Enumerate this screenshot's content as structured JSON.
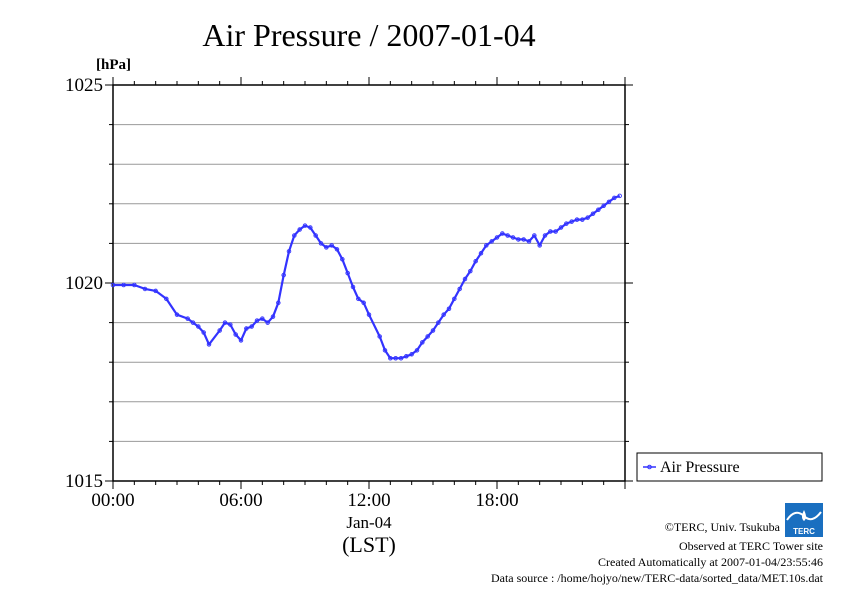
{
  "chart_data": {
    "type": "line",
    "title": "Air Pressure / 2007-01-04",
    "ylabel": "[hPa]",
    "xlabel": "(LST)",
    "date_label": "Jan-04",
    "ylim": [
      1015,
      1025
    ],
    "xlim_hours": [
      0,
      24
    ],
    "y_ticks": [
      "1015",
      "1020",
      "1025"
    ],
    "x_ticks": [
      {
        "hour": 0,
        "label": "00:00"
      },
      {
        "hour": 6,
        "label": "06:00"
      },
      {
        "hour": 12,
        "label": "12:00"
      },
      {
        "hour": 18,
        "label": "18:00"
      }
    ],
    "grid": true,
    "legend_position": "bottom-right outside",
    "series": [
      {
        "name": "Air Pressure",
        "color": "#3333ff",
        "x": [
          0.0,
          0.5,
          1.0,
          1.5,
          2.0,
          2.5,
          3.0,
          3.5,
          3.75,
          4.0,
          4.25,
          4.5,
          5.0,
          5.25,
          5.5,
          5.75,
          6.0,
          6.25,
          6.5,
          6.75,
          7.0,
          7.25,
          7.5,
          7.75,
          8.0,
          8.25,
          8.5,
          8.75,
          9.0,
          9.25,
          9.5,
          9.75,
          10.0,
          10.25,
          10.5,
          10.75,
          11.0,
          11.25,
          11.5,
          11.75,
          12.0,
          12.5,
          12.75,
          13.0,
          13.25,
          13.5,
          13.75,
          14.0,
          14.25,
          14.5,
          14.75,
          15.0,
          15.25,
          15.5,
          15.75,
          16.0,
          16.25,
          16.5,
          16.75,
          17.0,
          17.25,
          17.5,
          17.75,
          18.0,
          18.25,
          18.5,
          18.75,
          19.0,
          19.25,
          19.5,
          19.75,
          20.0,
          20.25,
          20.5,
          20.75,
          21.0,
          21.25,
          21.5,
          21.75,
          22.0,
          22.25,
          22.5,
          22.75,
          23.0,
          23.25,
          23.5,
          23.75
        ],
        "y": [
          1019.95,
          1019.95,
          1019.95,
          1019.85,
          1019.8,
          1019.6,
          1019.2,
          1019.1,
          1019.0,
          1018.9,
          1018.75,
          1018.45,
          1018.8,
          1019.0,
          1018.95,
          1018.7,
          1018.55,
          1018.85,
          1018.9,
          1019.05,
          1019.1,
          1019.0,
          1019.15,
          1019.5,
          1020.2,
          1020.8,
          1021.2,
          1021.35,
          1021.45,
          1021.4,
          1021.2,
          1021.0,
          1020.9,
          1020.95,
          1020.85,
          1020.6,
          1020.25,
          1019.9,
          1019.6,
          1019.5,
          1019.2,
          1018.65,
          1018.3,
          1018.1,
          1018.1,
          1018.1,
          1018.15,
          1018.2,
          1018.3,
          1018.5,
          1018.65,
          1018.8,
          1019.0,
          1019.2,
          1019.35,
          1019.6,
          1019.85,
          1020.1,
          1020.3,
          1020.55,
          1020.75,
          1020.95,
          1021.05,
          1021.15,
          1021.25,
          1021.2,
          1021.15,
          1021.1,
          1021.1,
          1021.05,
          1021.2,
          1020.95,
          1021.2,
          1021.3,
          1021.3,
          1021.4,
          1021.5,
          1021.55,
          1021.6,
          1021.6,
          1021.65,
          1021.75,
          1021.85,
          1021.95,
          1022.05,
          1022.15,
          1022.2
        ]
      }
    ]
  },
  "legend": {
    "label": "Air Pressure"
  },
  "credits": {
    "copyright": "©TERC, Univ. Tsukuba",
    "observed": "Observed at TERC Tower site",
    "created": "Created Automatically at 2007-01-04/23:55:46",
    "source": "Data source : /home/hojyo/new/TERC-data/sorted_data/MET.10s.dat"
  },
  "logo": {
    "text": "TERC",
    "color": "#1a6fc0"
  }
}
